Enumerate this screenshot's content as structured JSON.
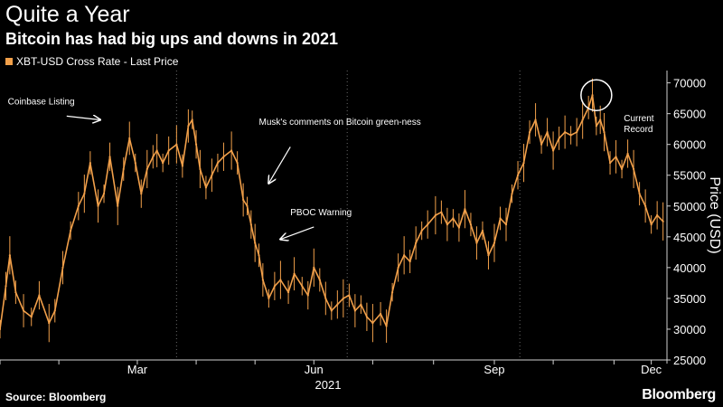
{
  "header": {
    "title": "Quite a Year",
    "subtitle": "Bitcoin has had big ups and downs in 2021"
  },
  "footer": {
    "source": "Source: Bloomberg",
    "brand": "Bloomberg"
  },
  "colors": {
    "background": "#000000",
    "series": "#f2a04a",
    "text": "#ffffff",
    "axis": "#cfcfcf",
    "grid": "#6a6a6a"
  },
  "chart_data": {
    "type": "line",
    "legend": "XBT-USD Cross Rate - Last Price",
    "legend_position": "top-left",
    "ylabel": "Price (USD)",
    "xlabel": "2021",
    "xlim": [
      0,
      340
    ],
    "ylim": [
      25000,
      72000
    ],
    "yticks": [
      25000,
      30000,
      35000,
      40000,
      45000,
      50000,
      55000,
      60000,
      65000,
      70000
    ],
    "xticks": [
      {
        "label": "Mar",
        "x": 70
      },
      {
        "label": "Jun",
        "x": 160
      },
      {
        "label": "Sep",
        "x": 252
      },
      {
        "label": "Dec",
        "x": 332
      }
    ],
    "x_minor_ticks": [
      0,
      30,
      70,
      100,
      130,
      160,
      190,
      221,
      252,
      282,
      313,
      332
    ],
    "vertical_gridlines": [
      90,
      177,
      265
    ],
    "grid": true,
    "series": [
      {
        "name": "XBT-USD Cross Rate - Last Price",
        "x": [
          0,
          3,
          5,
          8,
          12,
          16,
          20,
          25,
          28,
          32,
          36,
          40,
          43,
          46,
          50,
          53,
          56,
          60,
          63,
          66,
          69,
          72,
          75,
          78,
          80,
          83,
          86,
          90,
          93,
          96,
          98,
          100,
          102,
          105,
          108,
          111,
          114,
          118,
          121,
          124,
          126,
          128,
          130,
          132,
          134,
          137,
          140,
          143,
          147,
          150,
          154,
          157,
          160,
          163,
          166,
          169,
          172,
          175,
          178,
          181,
          184,
          187,
          190,
          194,
          197,
          200,
          203,
          206,
          209,
          212,
          215,
          218,
          222,
          225,
          228,
          231,
          234,
          237,
          240,
          243,
          246,
          249,
          252,
          255,
          258,
          261,
          264,
          267,
          270,
          273,
          276,
          279,
          282,
          285,
          288,
          291,
          294,
          297,
          300,
          302,
          304,
          306,
          308,
          311,
          314,
          317,
          320,
          323,
          326,
          329,
          332,
          335,
          338
        ],
        "values": [
          30000,
          37000,
          42000,
          36000,
          33000,
          32000,
          35500,
          31000,
          33000,
          40000,
          46000,
          50000,
          52000,
          57000,
          50000,
          52000,
          58000,
          50000,
          56000,
          61000,
          57000,
          52000,
          56000,
          58000,
          59000,
          57000,
          59000,
          60000,
          56500,
          63000,
          64000,
          60000,
          56000,
          53000,
          55000,
          57000,
          58000,
          59000,
          57000,
          51000,
          50000,
          47000,
          44000,
          42000,
          38000,
          35000,
          37000,
          38000,
          36000,
          39000,
          37000,
          35500,
          40000,
          38000,
          35000,
          33000,
          34000,
          35000,
          35500,
          33000,
          34000,
          32000,
          31000,
          32500,
          30500,
          36000,
          40000,
          42000,
          41000,
          44000,
          46000,
          47000,
          48500,
          49000,
          47000,
          48000,
          46500,
          49500,
          47000,
          44000,
          46000,
          42000,
          44000,
          48000,
          47000,
          52000,
          55000,
          57000,
          62000,
          64000,
          60000,
          62000,
          59000,
          61000,
          62000,
          61500,
          62000,
          64000,
          66000,
          68000,
          63000,
          64000,
          62000,
          57000,
          58000,
          56000,
          58500,
          56000,
          52000,
          50000,
          47000,
          48500,
          47500
        ]
      }
    ],
    "annotations": [
      {
        "text": "Coinbase Listing",
        "label_x": 4,
        "label_y": 66500,
        "arrow_from": [
          34,
          64600
        ],
        "arrow_to": [
          51,
          64000
        ]
      },
      {
        "text": "Musk's comments on Bitcoin green-ness",
        "label_x": 132,
        "label_y": 63200,
        "arrow_from": [
          148,
          59600
        ],
        "arrow_to": [
          137,
          53700
        ]
      },
      {
        "text": "PBOC Warning",
        "label_x": 148,
        "label_y": 48500,
        "arrow_from": [
          160,
          46600
        ],
        "arrow_to": [
          143,
          44600
        ]
      },
      {
        "text": "Current Record",
        "label_x": 318,
        "label_y": 63800,
        "circle_at": [
          304,
          68000
        ]
      }
    ]
  }
}
